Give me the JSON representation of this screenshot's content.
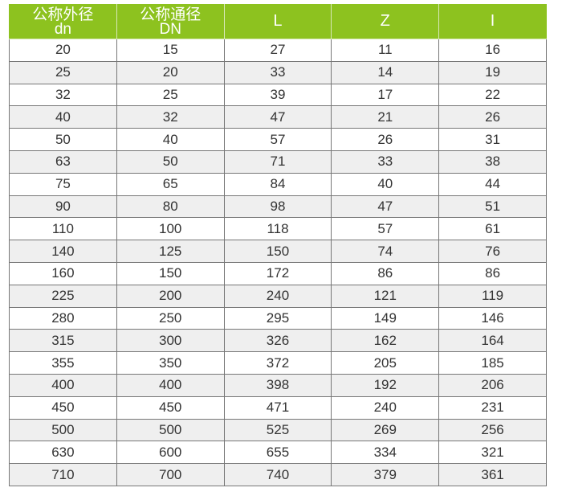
{
  "table": {
    "header_color": "#8dc21f",
    "headers": [
      {
        "line1": "公称外径",
        "line2": "dn"
      },
      {
        "line1": "公称通径",
        "line2": "DN"
      },
      {
        "line1": "L",
        "line2": ""
      },
      {
        "line1": "Z",
        "line2": ""
      },
      {
        "line1": "I",
        "line2": ""
      }
    ],
    "rows": [
      [
        "20",
        "15",
        "27",
        "11",
        "16"
      ],
      [
        "25",
        "20",
        "33",
        "14",
        "19"
      ],
      [
        "32",
        "25",
        "39",
        "17",
        "22"
      ],
      [
        "40",
        "32",
        "47",
        "21",
        "26"
      ],
      [
        "50",
        "40",
        "57",
        "26",
        "31"
      ],
      [
        "63",
        "50",
        "71",
        "33",
        "38"
      ],
      [
        "75",
        "65",
        "84",
        "40",
        "44"
      ],
      [
        "90",
        "80",
        "98",
        "47",
        "51"
      ],
      [
        "110",
        "100",
        "118",
        "57",
        "61"
      ],
      [
        "140",
        "125",
        "150",
        "74",
        "76"
      ],
      [
        "160",
        "150",
        "172",
        "86",
        "86"
      ],
      [
        "225",
        "200",
        "240",
        "121",
        "119"
      ],
      [
        "280",
        "250",
        "295",
        "149",
        "146"
      ],
      [
        "315",
        "300",
        "326",
        "162",
        "164"
      ],
      [
        "355",
        "350",
        "372",
        "205",
        "185"
      ],
      [
        "400",
        "400",
        "398",
        "192",
        "206"
      ],
      [
        "450",
        "450",
        "471",
        "240",
        "231"
      ],
      [
        "500",
        "500",
        "525",
        "269",
        "256"
      ],
      [
        "630",
        "600",
        "655",
        "334",
        "321"
      ],
      [
        "710",
        "700",
        "740",
        "379",
        "361"
      ]
    ]
  }
}
